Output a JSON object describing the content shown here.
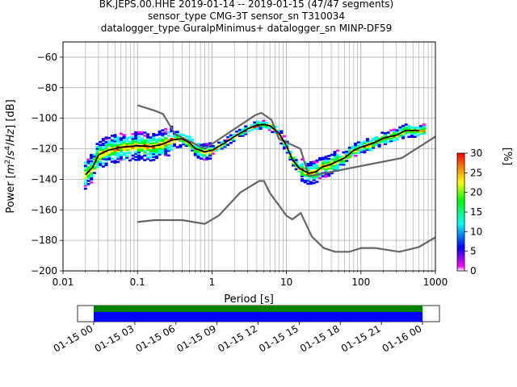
{
  "title_lines": [
    "BK.JEPS.00.HHE   2019-01-14 -- 2019-01-15  (47/47 segments)",
    "sensor_type CMG-3T sensor_sn T310034",
    "datalogger_type GuralpMinimus+ datalogger_sn MINP-DF59"
  ],
  "chart_data": [
    {
      "type": "heatmap",
      "title": "BK.JEPS.00.HHE   2019-01-14 -- 2019-01-15  (47/47 segments)",
      "xlabel": "Period [s]",
      "ylabel_parts": [
        "Power [",
        "m",
        "2",
        "/",
        "s",
        "4",
        "/",
        "Hz",
        "] [dB]"
      ],
      "x_scale": "log",
      "xlim": [
        0.01,
        1000
      ],
      "ylim": [
        -200,
        -50
      ],
      "x_ticks": [
        {
          "value": 0.01,
          "label": "0.01"
        },
        {
          "value": 0.1,
          "label": "0.1"
        },
        {
          "value": 1,
          "label": "1"
        },
        {
          "value": 10,
          "label": "10"
        },
        {
          "value": 100,
          "label": "100"
        },
        {
          "value": 1000,
          "label": "1000"
        }
      ],
      "y_ticks": [
        {
          "value": -200,
          "label": "−200"
        },
        {
          "value": -180,
          "label": "−180"
        },
        {
          "value": -160,
          "label": "−160"
        },
        {
          "value": -140,
          "label": "−140"
        },
        {
          "value": -120,
          "label": "−120"
        },
        {
          "value": -100,
          "label": "−100"
        },
        {
          "value": -80,
          "label": "−80"
        },
        {
          "value": -60,
          "label": "−60"
        }
      ],
      "grid": true,
      "colorbar": {
        "label": "[%]",
        "range": [
          0,
          30
        ],
        "ticks": [
          {
            "value": 0,
            "label": "0"
          },
          {
            "value": 5,
            "label": "5"
          },
          {
            "value": 10,
            "label": "10"
          },
          {
            "value": 15,
            "label": "15"
          },
          {
            "value": 20,
            "label": "20"
          },
          {
            "value": 25,
            "label": "25"
          },
          {
            "value": 30,
            "label": "30"
          }
        ],
        "colors": [
          "#ffffff",
          "#ff00ff",
          "#0000ff",
          "#00ffff",
          "#00ff00",
          "#ffff00",
          "#ff8000",
          "#ff0000"
        ]
      },
      "series": [
        {
          "role": "nhnm",
          "color": "#666666",
          "x": [
            0.1,
            0.17,
            0.22,
            0.32,
            0.8,
            3.8,
            4.6,
            6.3,
            7.9,
            15.4,
            20,
            354.8,
            1000
          ],
          "y": [
            -91.5,
            -95,
            -97.2,
            -110.5,
            -120,
            -98,
            -96.5,
            -101,
            -113.5,
            -120,
            -138,
            -126,
            -112
          ]
        },
        {
          "role": "nlnm",
          "color": "#666666",
          "x": [
            0.1,
            0.17,
            0.4,
            0.8,
            1.24,
            2.4,
            4.3,
            5,
            6,
            10,
            12,
            15.6,
            21.9,
            31.6,
            45,
            70,
            101,
            154,
            328,
            600,
            1000
          ],
          "y": [
            -168,
            -166.7,
            -166.7,
            -169.2,
            -163.7,
            -148.6,
            -141.1,
            -141.1,
            -149,
            -163.8,
            -166.2,
            -162.1,
            -177.5,
            -185,
            -187.5,
            -187.5,
            -185,
            -185,
            -187.5,
            -184.4,
            -178
          ]
        },
        {
          "role": "mode",
          "color": "#000000",
          "x": [
            0.02,
            0.025,
            0.03,
            0.04,
            0.06,
            0.1,
            0.15,
            0.2,
            0.3,
            0.4,
            0.5,
            0.6,
            0.8,
            1.0,
            1.5,
            2.0,
            3.0,
            4.0,
            5.0,
            6.0,
            8.0,
            10,
            12,
            15,
            20,
            25,
            30,
            40,
            60,
            80,
            100,
            150,
            200,
            300,
            400,
            500,
            600
          ],
          "y": [
            -137,
            -132,
            -124,
            -121,
            -119,
            -118,
            -118.5,
            -117.5,
            -114,
            -113.5,
            -116,
            -120,
            -122,
            -121,
            -116,
            -112,
            -107,
            -104.5,
            -104,
            -105,
            -110,
            -118,
            -127,
            -133,
            -136,
            -135,
            -132,
            -130,
            -126,
            -121,
            -119,
            -116,
            -113,
            -111,
            -108,
            -108,
            -108
          ]
        }
      ],
      "time_coverage": {
        "tick_labels": [
          "01-15 00",
          "01-15 03",
          "01-15 06",
          "01-15 09",
          "01-15 12",
          "01-15 15",
          "01-15 18",
          "01-15 21",
          "01-16 00"
        ],
        "bars": [
          {
            "role": "data",
            "color": "#008000",
            "start_hour": 0,
            "end_hour": 24
          },
          {
            "role": "segments",
            "color": "#0000ff",
            "start_hour": 0,
            "end_hour": 24
          }
        ]
      }
    }
  ]
}
